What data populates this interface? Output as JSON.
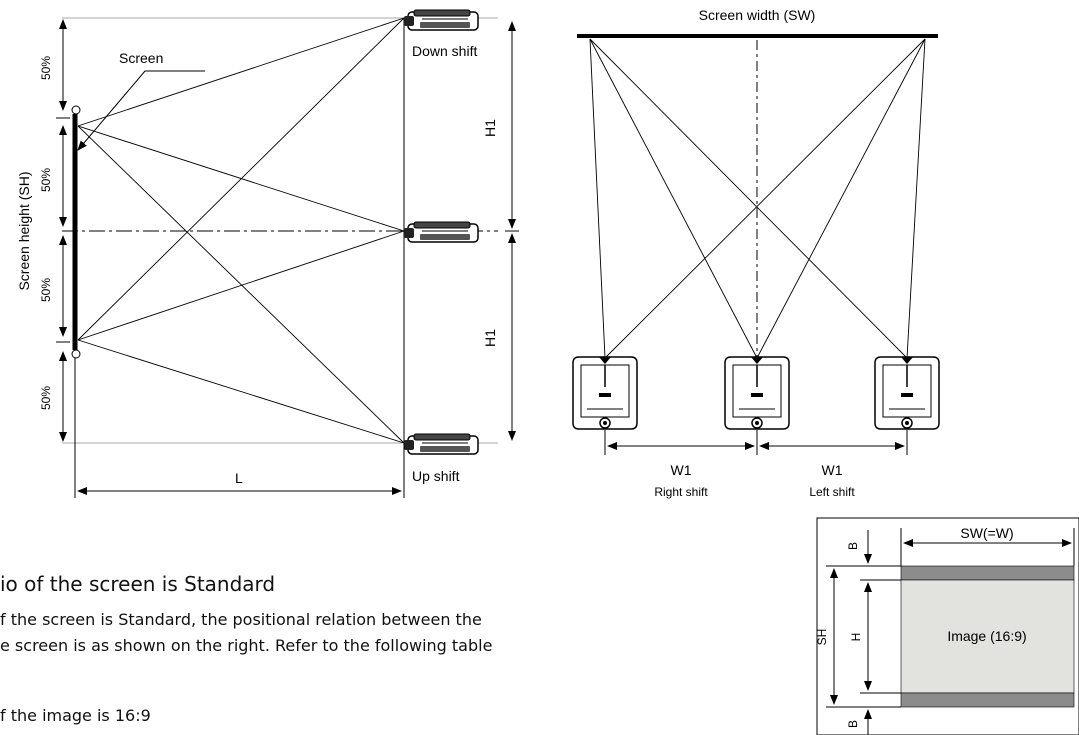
{
  "side_view": {
    "screen_label": "Screen",
    "screen_height_label": "Screen height (SH)",
    "percent_labels": [
      "50%",
      "50%",
      "50%",
      "50%"
    ],
    "down_shift_label": "Down shift",
    "up_shift_label": "Up shift",
    "h1_label_top": "H1",
    "h1_label_bottom": "H1",
    "distance_label": "L"
  },
  "top_view": {
    "screen_width_label": "Screen width (SW)",
    "w1_left_label": "W1",
    "w1_right_label": "W1",
    "right_shift_label": "Right shift",
    "left_shift_label": "Left shift"
  },
  "aspect_diagram": {
    "width_label": "SW(=W)",
    "screen_height_label": "SH",
    "image_height_label": "H",
    "border_top_label": "B",
    "border_bottom_label": "B",
    "image_label": "Image (16:9)",
    "border_color": "#8c8c8c",
    "image_color": "#e2e2de"
  },
  "document": {
    "heading": "io of the screen is Standard",
    "line1": "f the screen is Standard, the positional relation between the",
    "line2": "e screen is as shown on the right. Refer to the following table",
    "line3": "f the image is 16:9"
  }
}
